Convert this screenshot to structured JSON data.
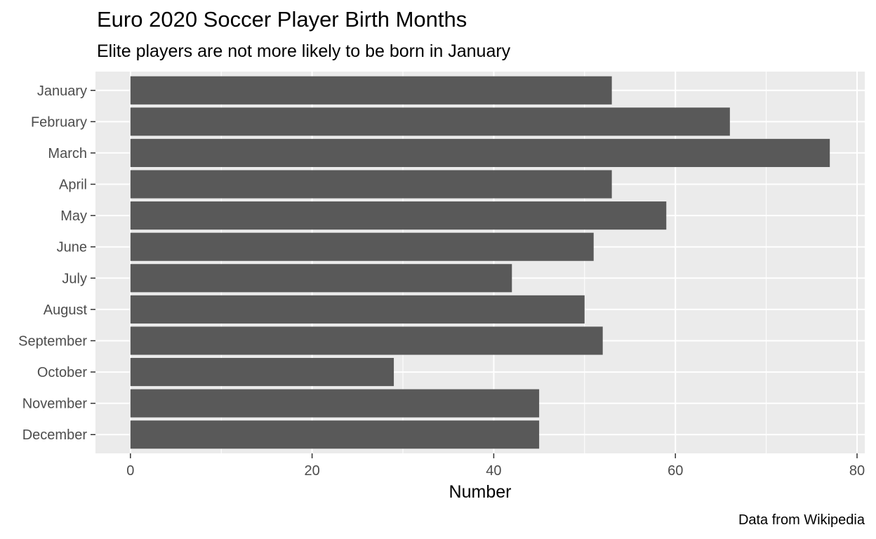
{
  "chart_data": {
    "type": "bar",
    "orientation": "horizontal",
    "title": "Euro 2020 Soccer Player Birth Months",
    "subtitle": "Elite players are not more likely to be born in January",
    "caption": "Data from Wikipedia",
    "xlabel": "Number",
    "ylabel": "",
    "categories": [
      "January",
      "February",
      "March",
      "April",
      "May",
      "June",
      "July",
      "August",
      "September",
      "October",
      "November",
      "December"
    ],
    "values": [
      53,
      66,
      77,
      53,
      59,
      51,
      42,
      50,
      52,
      29,
      45,
      45
    ],
    "xlim": [
      -3.85,
      80.85
    ],
    "x_ticks": [
      0,
      20,
      40,
      60,
      80
    ],
    "grid": true,
    "legend": "none",
    "colors": {
      "bar": "#595959",
      "panel_background": "#ebebeb",
      "grid": "#ffffff",
      "tick_text": "#4d4d4d"
    }
  }
}
